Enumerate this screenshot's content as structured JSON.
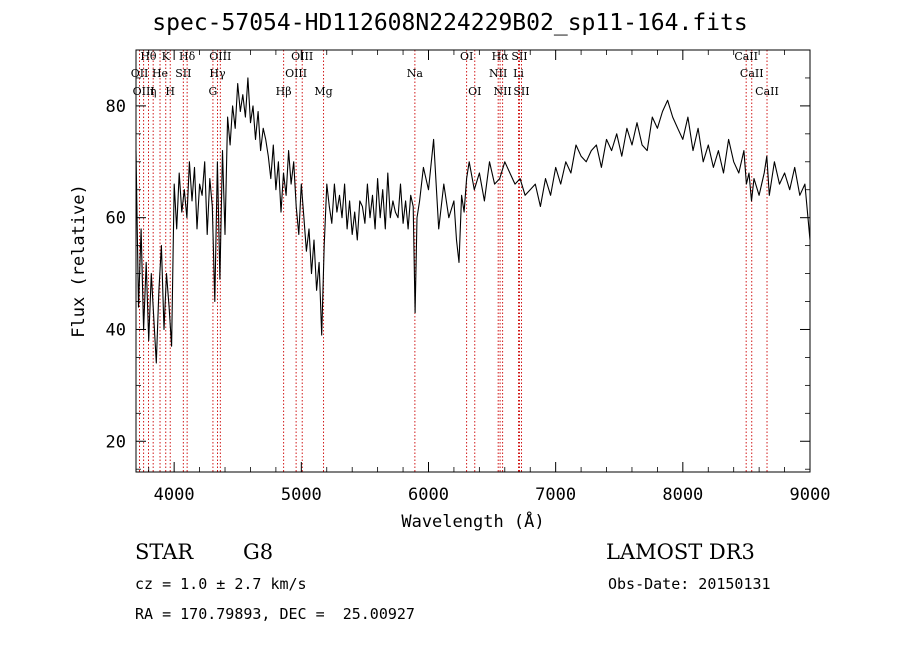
{
  "header": {
    "title": "spec-57054-HD112608N224229B02_sp11-164.fits"
  },
  "footer": {
    "object_class": "STAR",
    "subclass": "G8",
    "redshift": "cz = 1.0 ± 2.7 km/s",
    "coords": "RA = 170.79893, DEC =  25.00927",
    "survey": "LAMOST DR3",
    "obs_date": "Obs-Date: 20150131"
  },
  "chart_data": {
    "type": "line",
    "title": "spec-57054-HD112608N224229B02_sp11-164.fits",
    "xlabel": "Wavelength (Å)",
    "ylabel": "Flux (relative)",
    "xlim": [
      3700,
      9000
    ],
    "ylim": [
      14.5,
      90
    ],
    "xticks": [
      4000,
      5000,
      6000,
      7000,
      8000,
      9000
    ],
    "yticks": [
      20,
      40,
      60,
      80
    ],
    "grid": false,
    "series": [
      {
        "x": [
          3700,
          3720,
          3740,
          3760,
          3780,
          3800,
          3820,
          3840,
          3860,
          3880,
          3900,
          3920,
          3940,
          3960,
          3980,
          4000,
          4020,
          4040,
          4060,
          4080,
          4100,
          4120,
          4140,
          4160,
          4180,
          4200,
          4220,
          4240,
          4260,
          4280,
          4300,
          4320,
          4340,
          4360,
          4380,
          4400,
          4420,
          4440,
          4460,
          4480,
          4500,
          4520,
          4540,
          4560,
          4580,
          4600,
          4620,
          4640,
          4660,
          4680,
          4700,
          4720,
          4740,
          4760,
          4780,
          4800,
          4820,
          4840,
          4860,
          4880,
          4900,
          4920,
          4940,
          4960,
          4980,
          5000,
          5020,
          5040,
          5060,
          5080,
          5100,
          5120,
          5140,
          5160,
          5180,
          5200,
          5220,
          5240,
          5260,
          5280,
          5300,
          5320,
          5340,
          5360,
          5380,
          5400,
          5420,
          5440,
          5460,
          5480,
          5500,
          5520,
          5540,
          5560,
          5580,
          5600,
          5620,
          5640,
          5660,
          5680,
          5700,
          5720,
          5740,
          5760,
          5780,
          5800,
          5820,
          5840,
          5860,
          5880,
          5895,
          5910,
          5930,
          5960,
          6000,
          6040,
          6080,
          6120,
          6160,
          6200,
          6220,
          6240,
          6260,
          6280,
          6300,
          6320,
          6360,
          6400,
          6440,
          6480,
          6520,
          6560,
          6600,
          6640,
          6680,
          6720,
          6760,
          6800,
          6840,
          6880,
          6920,
          6960,
          7000,
          7040,
          7080,
          7120,
          7160,
          7200,
          7240,
          7280,
          7320,
          7360,
          7400,
          7440,
          7480,
          7520,
          7560,
          7600,
          7640,
          7680,
          7720,
          7760,
          7800,
          7840,
          7880,
          7920,
          7960,
          8000,
          8040,
          8080,
          8120,
          8160,
          8200,
          8240,
          8280,
          8320,
          8360,
          8400,
          8440,
          8480,
          8500,
          8520,
          8540,
          8560,
          8600,
          8640,
          8660,
          8680,
          8720,
          8760,
          8800,
          8840,
          8880,
          8920,
          8960,
          9000
        ],
        "y": [
          72,
          44,
          58,
          40,
          52,
          38,
          50,
          42,
          34,
          47,
          55,
          40,
          50,
          44,
          37,
          66,
          58,
          68,
          61,
          65,
          60,
          70,
          63,
          69,
          58,
          66,
          64,
          70,
          57,
          67,
          62,
          45,
          70,
          49,
          72,
          57,
          78,
          73,
          80,
          76,
          84,
          79,
          82,
          78,
          85,
          77,
          80,
          74,
          79,
          72,
          76,
          74,
          71,
          67,
          73,
          65,
          70,
          61,
          68,
          64,
          72,
          66,
          70,
          62,
          57,
          66,
          60,
          54,
          58,
          50,
          56,
          47,
          52,
          39,
          55,
          66,
          62,
          59,
          66,
          61,
          64,
          60,
          66,
          58,
          63,
          57,
          61,
          56,
          63,
          62,
          59,
          66,
          60,
          64,
          58,
          67,
          60,
          65,
          58,
          68,
          60,
          63,
          61,
          60,
          66,
          59,
          63,
          58,
          64,
          62,
          43,
          60,
          63,
          69,
          65,
          74,
          58,
          66,
          60,
          63,
          56,
          52,
          64,
          61,
          67,
          70,
          65,
          68,
          63,
          70,
          66,
          67,
          70,
          68,
          66,
          67,
          64,
          65,
          66,
          62,
          67,
          64,
          69,
          66,
          70,
          68,
          73,
          71,
          70,
          72,
          73,
          69,
          74,
          72,
          75,
          71,
          76,
          73,
          77,
          73,
          72,
          78,
          76,
          79,
          81,
          78,
          76,
          74,
          78,
          72,
          76,
          70,
          73,
          69,
          72,
          68,
          74,
          70,
          68,
          72,
          66,
          68,
          63,
          67,
          64,
          68,
          71,
          64,
          70,
          66,
          68,
          65,
          69,
          64,
          66,
          56
        ]
      }
    ],
    "line_markers": [
      {
        "label": "Hθ",
        "x": 3798
      },
      {
        "label": "OII",
        "x": 3728
      },
      {
        "label": "OIII",
        "x": 3760
      },
      {
        "label": "K",
        "x": 3934
      },
      {
        "label": "H",
        "x": 3969
      },
      {
        "label": "He",
        "x": 3889
      },
      {
        "label": "η",
        "x": 3835
      },
      {
        "label": "SII",
        "x": 4072
      },
      {
        "label": "Hδ",
        "x": 4102
      },
      {
        "label": "OIII",
        "x": 4363
      },
      {
        "label": "Hγ",
        "x": 4341
      },
      {
        "label": "G",
        "x": 4305
      },
      {
        "label": "OIII",
        "x": 5007
      },
      {
        "label": "OIII",
        "x": 4959
      },
      {
        "label": "Hβ",
        "x": 4861
      },
      {
        "label": "Mg",
        "x": 5175
      },
      {
        "label": "Na",
        "x": 5893
      },
      {
        "label": "OI",
        "x": 6300
      },
      {
        "label": "OI",
        "x": 6364
      },
      {
        "label": "Hα",
        "x": 6563
      },
      {
        "label": "NII",
        "x": 6548
      },
      {
        "label": "NII",
        "x": 6583
      },
      {
        "label": "SII",
        "x": 6716
      },
      {
        "label": "SII",
        "x": 6731
      },
      {
        "label": "Li",
        "x": 6708
      },
      {
        "label": "CaII",
        "x": 8498
      },
      {
        "label": "CaII",
        "x": 8542
      },
      {
        "label": "CaII",
        "x": 8662
      }
    ],
    "colors": {
      "line": "#000000",
      "markers": "#cc0000"
    }
  }
}
